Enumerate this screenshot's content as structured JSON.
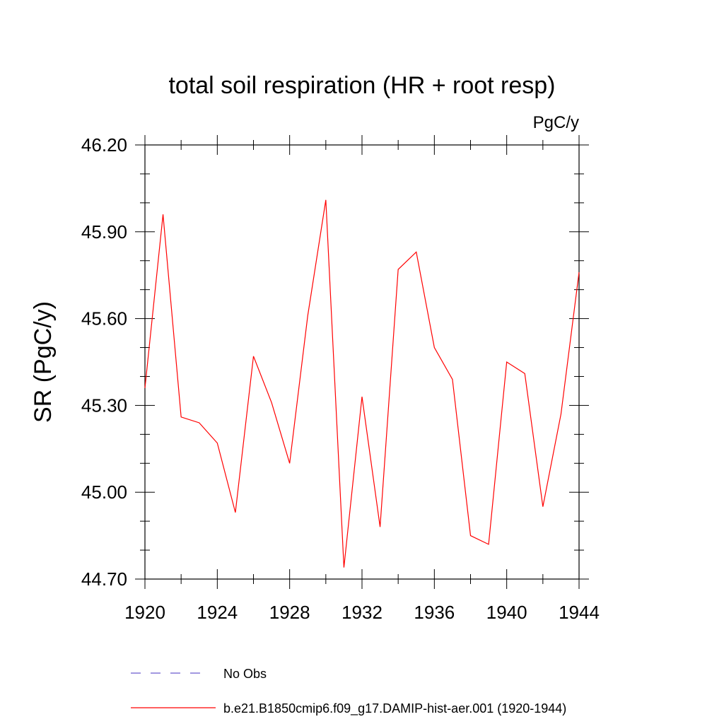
{
  "chart_data": {
    "type": "line",
    "title": "total soil respiration (HR + root resp)",
    "units_label": "PgC/y",
    "ylabel": "SR  (PgC/y)",
    "xlabel": "",
    "xlim": [
      1920,
      1944
    ],
    "ylim": [
      44.7,
      46.2
    ],
    "x_ticks": [
      1920,
      1924,
      1928,
      1932,
      1936,
      1940,
      1944
    ],
    "x_tick_labels": [
      "1920",
      "1924",
      "1928",
      "1932",
      "1936",
      "1940",
      "1944"
    ],
    "y_ticks": [
      44.7,
      45.0,
      45.3,
      45.6,
      45.9,
      46.2
    ],
    "y_tick_labels": [
      "44.70",
      "45.00",
      "45.30",
      "45.60",
      "45.90",
      "46.20"
    ],
    "grid": false,
    "legend_placement": "bottom",
    "series": [
      {
        "name": "b.e21.B1850cmip6.f09_g17.DAMIP-hist-aer.001 (1920-1944)",
        "color": "#ff0000",
        "style": "solid",
        "x": [
          1920,
          1921,
          1922,
          1923,
          1924,
          1925,
          1926,
          1927,
          1928,
          1929,
          1930,
          1931,
          1932,
          1933,
          1934,
          1935,
          1936,
          1937,
          1938,
          1939,
          1940,
          1941,
          1942,
          1943,
          1944
        ],
        "values": [
          45.36,
          45.96,
          45.26,
          45.24,
          45.17,
          44.93,
          45.47,
          45.31,
          45.1,
          45.61,
          46.01,
          44.74,
          45.33,
          44.88,
          45.77,
          45.83,
          45.5,
          45.39,
          44.85,
          44.82,
          45.45,
          45.41,
          44.95,
          45.27,
          45.76
        ]
      }
    ],
    "legend": [
      {
        "label": "No Obs",
        "color": "#6a5acd",
        "style": "dashed"
      },
      {
        "label": "b.e21.B1850cmip6.f09_g17.DAMIP-hist-aer.001 (1920-1944)",
        "color": "#ff0000",
        "style": "solid"
      }
    ]
  }
}
